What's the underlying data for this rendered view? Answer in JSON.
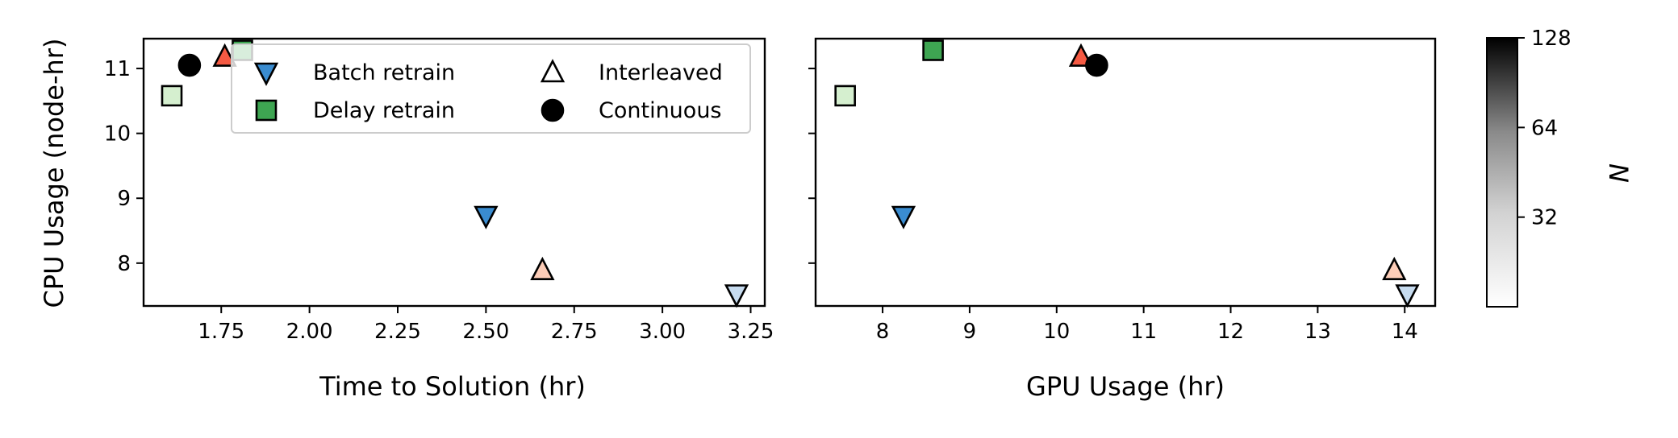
{
  "chart_data": [
    {
      "type": "scatter",
      "xlabel": "Time to Solution (hr)",
      "ylabel": "CPU Usage (node-hr)",
      "xlim": [
        1.53,
        3.29
      ],
      "ylim": [
        7.34,
        11.46
      ],
      "xticks": [
        "1.75",
        "2.00",
        "2.25",
        "2.50",
        "2.75",
        "3.00",
        "3.25"
      ],
      "yticks": [
        "8",
        "9",
        "10",
        "11"
      ],
      "legend_location": "upper-right",
      "points": [
        {
          "series": "Delay retrain",
          "x": 1.61,
          "y": 10.58,
          "n": 16
        },
        {
          "series": "Continuous",
          "x": 1.66,
          "y": 11.05,
          "n": 128
        },
        {
          "series": "Interleaved",
          "x": 1.76,
          "y": 11.18,
          "n": 64
        },
        {
          "series": "Delay retrain",
          "x": 1.81,
          "y": 11.28,
          "n": 64
        },
        {
          "series": "Batch retrain",
          "x": 2.5,
          "y": 8.73,
          "n": 64
        },
        {
          "series": "Interleaved",
          "x": 2.66,
          "y": 7.89,
          "n": 16
        },
        {
          "series": "Batch retrain",
          "x": 3.21,
          "y": 7.52,
          "n": 16
        }
      ]
    },
    {
      "type": "scatter",
      "xlabel": "GPU Usage (hr)",
      "ylabel": "",
      "xlim": [
        7.23,
        14.35
      ],
      "ylim": [
        7.34,
        11.46
      ],
      "xticks": [
        "8",
        "9",
        "10",
        "11",
        "12",
        "13",
        "14"
      ],
      "yticks": [
        "",
        "",
        "",
        ""
      ],
      "points": [
        {
          "series": "Delay retrain",
          "x": 7.57,
          "y": 10.58,
          "n": 16
        },
        {
          "series": "Delay retrain",
          "x": 8.58,
          "y": 11.28,
          "n": 64
        },
        {
          "series": "Batch retrain",
          "x": 8.24,
          "y": 8.73,
          "n": 64
        },
        {
          "series": "Interleaved",
          "x": 10.28,
          "y": 11.18,
          "n": 64
        },
        {
          "series": "Continuous",
          "x": 10.46,
          "y": 11.05,
          "n": 128
        },
        {
          "series": "Interleaved",
          "x": 13.88,
          "y": 7.89,
          "n": 16
        },
        {
          "series": "Batch retrain",
          "x": 14.03,
          "y": 7.52,
          "n": 16
        }
      ]
    }
  ],
  "legend": [
    {
      "label": "Batch retrain",
      "marker": "triangle-down",
      "color": "#3a8cd0"
    },
    {
      "label": "Interleaved",
      "marker": "triangle-up",
      "color": "#ffffff"
    },
    {
      "label": "Delay retrain",
      "marker": "square",
      "color": "#3ea552"
    },
    {
      "label": "Continuous",
      "marker": "circle",
      "color": "#000000"
    }
  ],
  "colorbar": {
    "label": "N",
    "ticks": [
      "32",
      "64",
      "128"
    ],
    "tick_values": [
      32,
      64,
      128
    ],
    "range": [
      16,
      128
    ],
    "colormap": "greys"
  },
  "series_colors": {
    "Batch retrain": {
      "16": "#c6dbef",
      "64": "#3a8cd0"
    },
    "Delay retrain": {
      "16": "#d5efcf",
      "64": "#3ea552"
    },
    "Interleaved": {
      "16": "#fdcdb8",
      "64": "#f55a43"
    },
    "Continuous": {
      "128": "#000000"
    }
  }
}
